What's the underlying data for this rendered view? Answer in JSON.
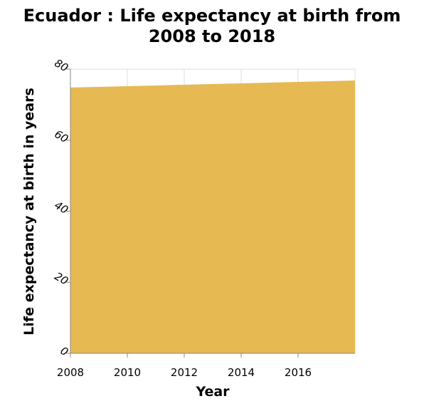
{
  "chart_data": {
    "type": "area",
    "title_line1": "Ecuador : Life expectancy at birth from",
    "title_line2": "2008 to 2018",
    "xlabel": "Year",
    "ylabel": "Life expectancy at birth in years",
    "xlim": [
      2008,
      2018
    ],
    "ylim": [
      0,
      80
    ],
    "xticks": [
      2008,
      2010,
      2012,
      2014,
      2016
    ],
    "yticks": [
      0,
      20,
      40,
      60,
      80
    ],
    "grid": true,
    "series": [
      {
        "x": [
          2008,
          2009,
          2010,
          2011,
          2012,
          2013,
          2014,
          2015,
          2016,
          2017,
          2018
        ],
        "values": [
          74.8,
          75.0,
          75.2,
          75.4,
          75.6,
          75.8,
          76.0,
          76.2,
          76.4,
          76.6,
          76.8
        ]
      }
    ],
    "colors": {
      "fill": "#e6b952",
      "grid": "#dcdcdc",
      "axis": "#888888"
    }
  }
}
